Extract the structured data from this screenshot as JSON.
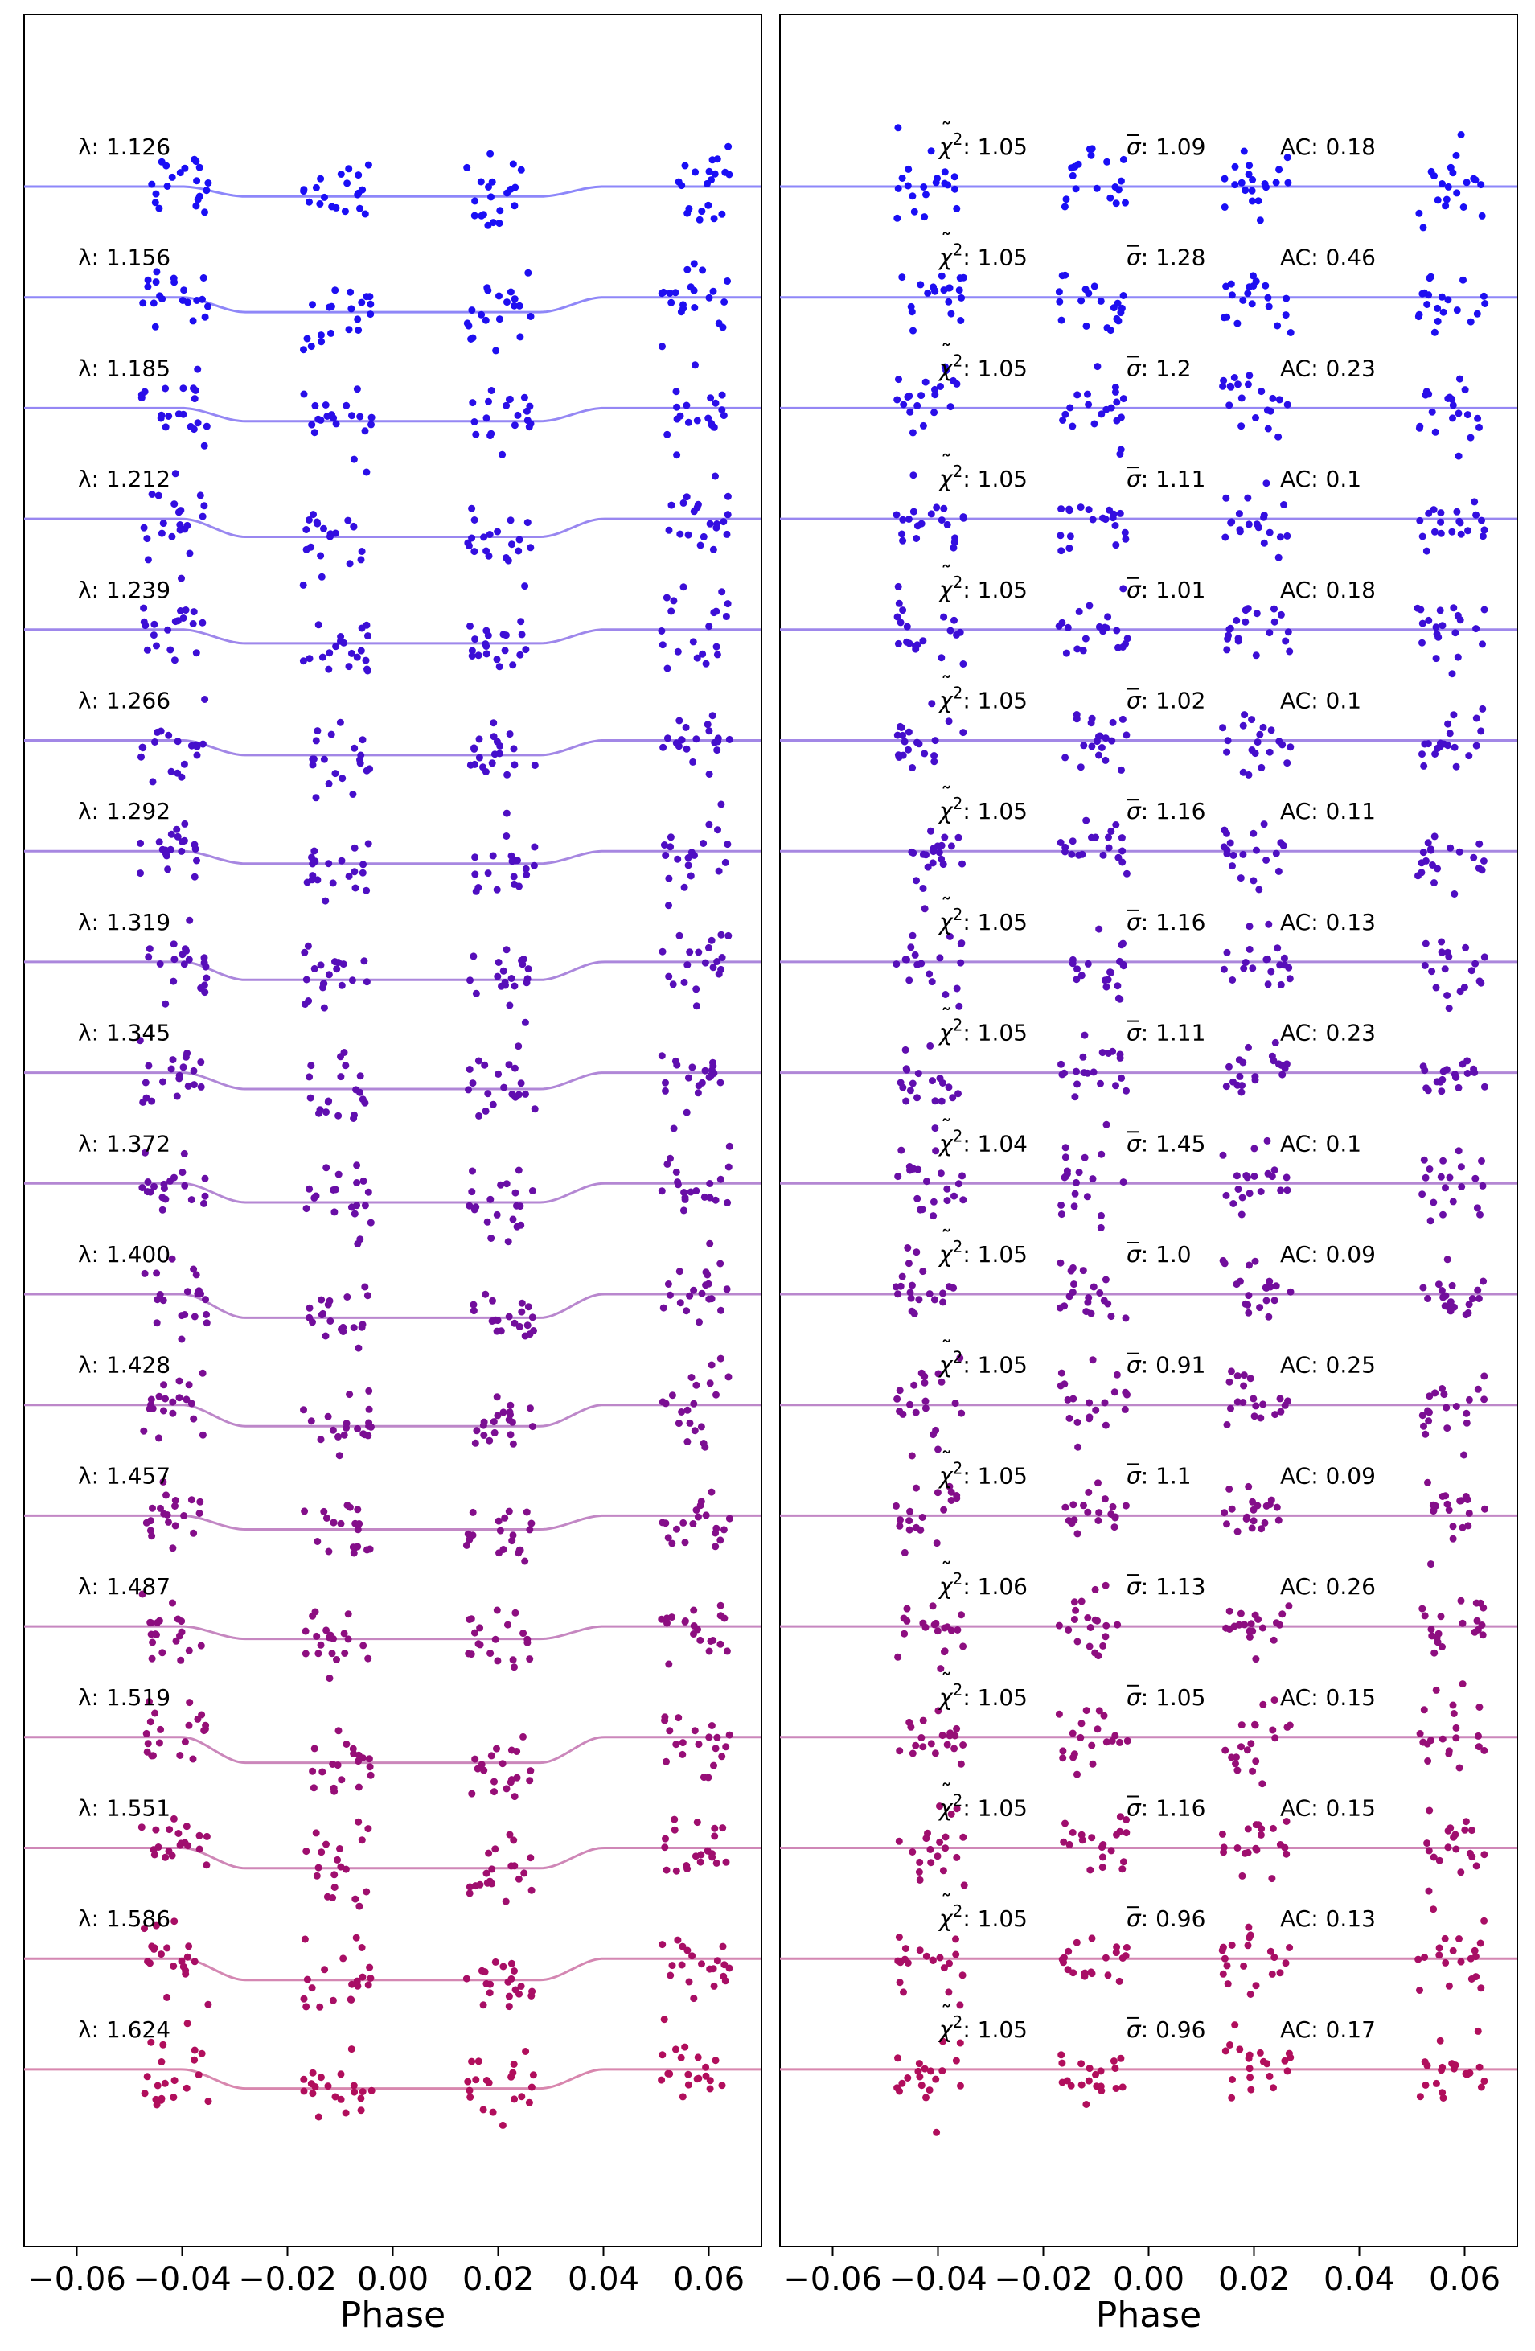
{
  "chart_data": [
    {
      "type": "scatter",
      "panel": "left",
      "xlabel": "Phase",
      "xlim": [
        -0.07,
        0.07
      ],
      "xticks": [
        -0.06,
        -0.04,
        -0.02,
        0.0,
        0.02,
        0.04,
        0.06
      ],
      "xtick_labels": [
        "−0.06",
        "−0.04",
        "−0.02",
        "0.00",
        "0.02",
        "0.04",
        "0.06"
      ],
      "label_prefix": "λ: ",
      "data_phase_ranges": [
        [
          -0.048,
          -0.035
        ],
        [
          -0.017,
          -0.004
        ],
        [
          0.014,
          0.027
        ],
        [
          0.051,
          0.064
        ]
      ],
      "transit_model": {
        "ingress_start": -0.04,
        "ingress_end": -0.028,
        "egress_start": 0.028,
        "egress_end": 0.04
      },
      "rows": [
        {
          "label": "1.126",
          "depth": 0.3,
          "color": "#1a0ef5"
        },
        {
          "label": "1.156",
          "depth": 0.45,
          "color": "#1e0ef0"
        },
        {
          "label": "1.185",
          "depth": 0.4,
          "color": "#2a0ee8"
        },
        {
          "label": "1.212",
          "depth": 0.55,
          "color": "#330ee0"
        },
        {
          "label": "1.239",
          "depth": 0.42,
          "color": "#3c0ed6"
        },
        {
          "label": "1.266",
          "depth": 0.45,
          "color": "#450ecc"
        },
        {
          "label": "1.292",
          "depth": 0.38,
          "color": "#4e0ec3"
        },
        {
          "label": "1.319",
          "depth": 0.55,
          "color": "#570eb9"
        },
        {
          "label": "1.345",
          "depth": 0.5,
          "color": "#600eaf"
        },
        {
          "label": "1.372",
          "depth": 0.58,
          "color": "#690ea6"
        },
        {
          "label": "1.400",
          "depth": 0.72,
          "color": "#720e9c"
        },
        {
          "label": "1.428",
          "depth": 0.65,
          "color": "#7b0e93"
        },
        {
          "label": "1.457",
          "depth": 0.42,
          "color": "#840e8a"
        },
        {
          "label": "1.487",
          "depth": 0.38,
          "color": "#8d0e80"
        },
        {
          "label": "1.519",
          "depth": 0.78,
          "color": "#960e77"
        },
        {
          "label": "1.551",
          "depth": 0.62,
          "color": "#9f0e6e"
        },
        {
          "label": "1.586",
          "depth": 0.65,
          "color": "#a80e65"
        },
        {
          "label": "1.624",
          "depth": 0.58,
          "color": "#b10e5c"
        }
      ]
    },
    {
      "type": "scatter",
      "panel": "right",
      "xlabel": "Phase",
      "xlim": [
        -0.07,
        0.07
      ],
      "xticks": [
        -0.06,
        -0.04,
        -0.02,
        0.0,
        0.02,
        0.04,
        0.06
      ],
      "xtick_labels": [
        "−0.06",
        "−0.04",
        "−0.02",
        "0.00",
        "0.02",
        "0.04",
        "0.06"
      ],
      "chi_prefix": ": ",
      "sigma_prefix": ": ",
      "ac_prefix": "AC: ",
      "data_phase_ranges": [
        [
          -0.048,
          -0.035
        ],
        [
          -0.017,
          -0.004
        ],
        [
          0.014,
          0.027
        ],
        [
          0.051,
          0.064
        ]
      ],
      "rows": [
        {
          "chi2": "1.05",
          "sigma": "1.09",
          "ac": "0.18",
          "color": "#1a0ef5"
        },
        {
          "chi2": "1.05",
          "sigma": "1.28",
          "ac": "0.46",
          "color": "#1e0ef0"
        },
        {
          "chi2": "1.05",
          "sigma": "1.2",
          "ac": "0.23",
          "color": "#2a0ee8"
        },
        {
          "chi2": "1.05",
          "sigma": "1.11",
          "ac": "0.1",
          "color": "#330ee0"
        },
        {
          "chi2": "1.05",
          "sigma": "1.01",
          "ac": "0.18",
          "color": "#3c0ed6"
        },
        {
          "chi2": "1.05",
          "sigma": "1.02",
          "ac": "0.1",
          "color": "#450ecc"
        },
        {
          "chi2": "1.05",
          "sigma": "1.16",
          "ac": "0.11",
          "color": "#4e0ec3"
        },
        {
          "chi2": "1.05",
          "sigma": "1.16",
          "ac": "0.13",
          "color": "#570eb9"
        },
        {
          "chi2": "1.05",
          "sigma": "1.11",
          "ac": "0.23",
          "color": "#600eaf"
        },
        {
          "chi2": "1.04",
          "sigma": "1.45",
          "ac": "0.1",
          "color": "#690ea6"
        },
        {
          "chi2": "1.05",
          "sigma": "1.0",
          "ac": "0.09",
          "color": "#720e9c"
        },
        {
          "chi2": "1.05",
          "sigma": "0.91",
          "ac": "0.25",
          "color": "#7b0e93"
        },
        {
          "chi2": "1.05",
          "sigma": "1.1",
          "ac": "0.09",
          "color": "#840e8a"
        },
        {
          "chi2": "1.06",
          "sigma": "1.13",
          "ac": "0.26",
          "color": "#8d0e80"
        },
        {
          "chi2": "1.05",
          "sigma": "1.05",
          "ac": "0.15",
          "color": "#960e77"
        },
        {
          "chi2": "1.05",
          "sigma": "1.16",
          "ac": "0.15",
          "color": "#9f0e6e"
        },
        {
          "chi2": "1.05",
          "sigma": "0.96",
          "ac": "0.13",
          "color": "#a80e65"
        },
        {
          "chi2": "1.05",
          "sigma": "0.96",
          "ac": "0.17",
          "color": "#b10e5c"
        }
      ]
    }
  ]
}
